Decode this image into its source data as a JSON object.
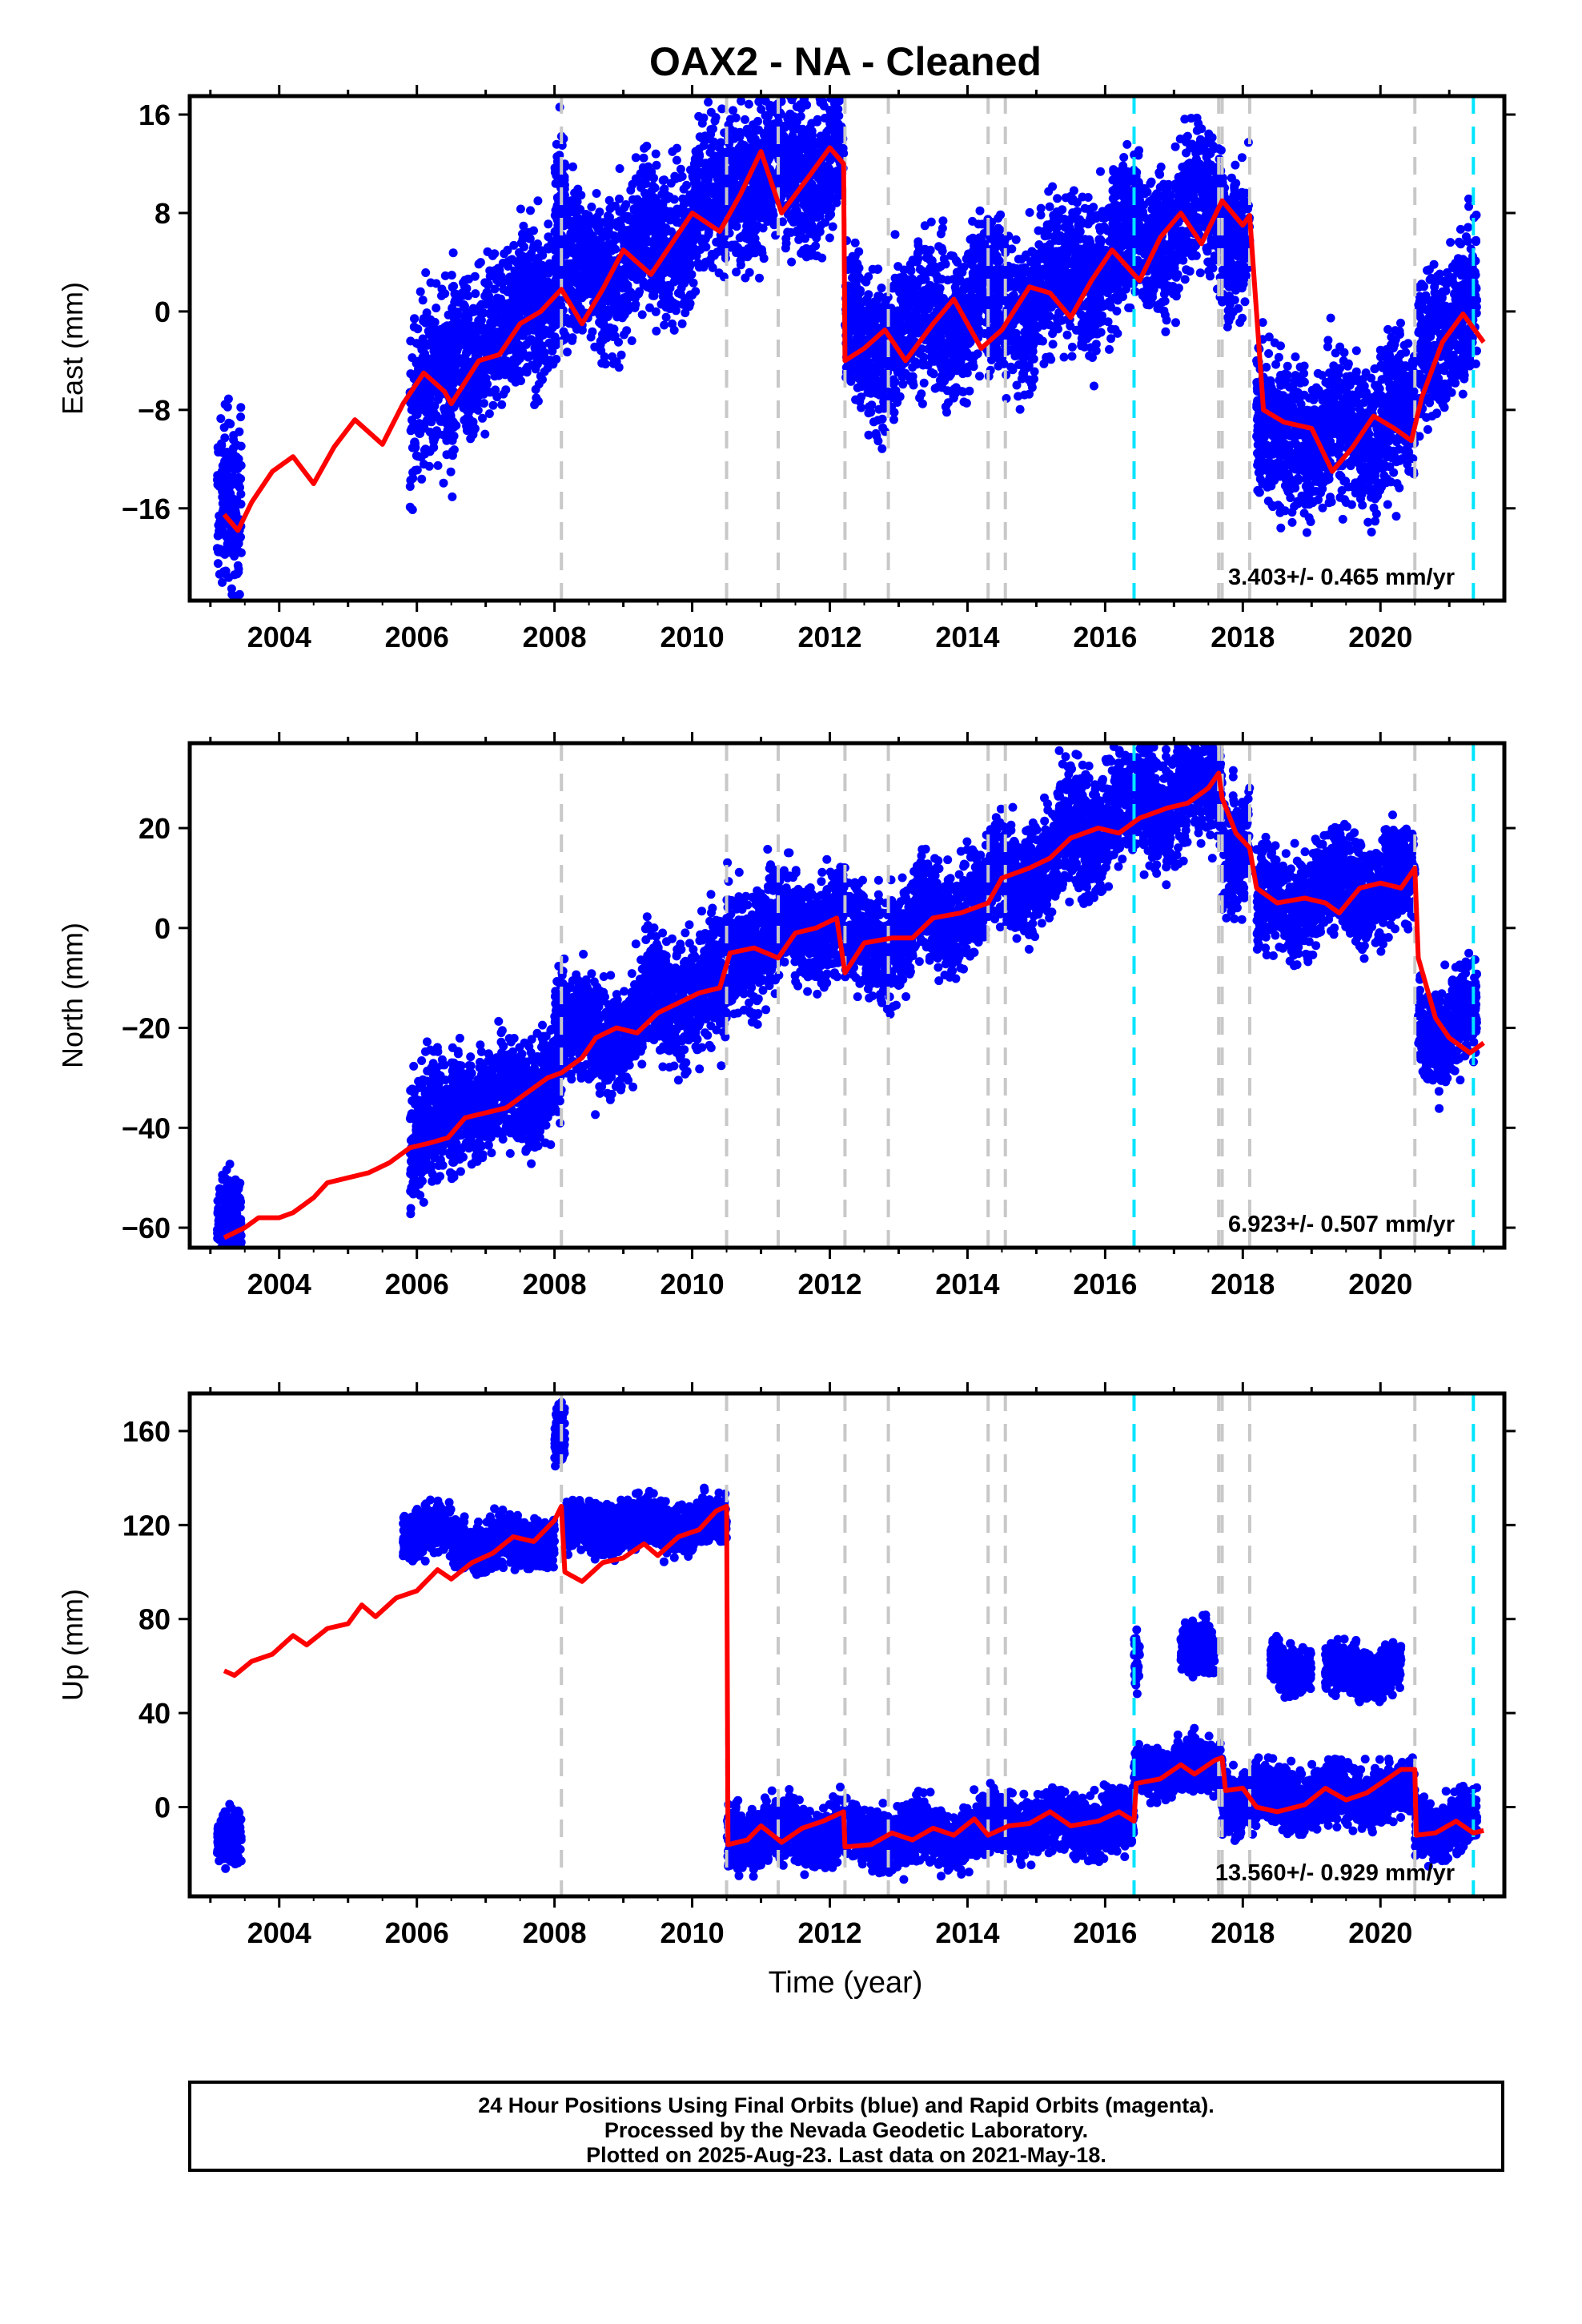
{
  "title": "OAX2  - NA - Cleaned",
  "xlabel": "Time (year)",
  "footer": {
    "line1": "24 Hour Positions Using Final Orbits (blue) and Rapid Orbits (magenta).",
    "line2": "Processed by the Nevada Geodetic Laboratory.",
    "line3": "Plotted on 2025-Aug-23. Last data on 2021-May-18."
  },
  "colors": {
    "data": "#0000ff",
    "model": "#ff0000",
    "equipment_line": "#c8c8c8",
    "earthquake_line": "#00e5ff",
    "axis": "#000000"
  },
  "chart_data": [
    {
      "type": "scatter",
      "component": "East",
      "ylabel": "East (mm)",
      "rate_label": "3.403+/- 0.465 mm/yr",
      "xlim": [
        2002.7,
        2021.8
      ],
      "ylim": [
        -23.5,
        17.5
      ],
      "xticks": [
        2004,
        2006,
        2008,
        2010,
        2012,
        2014,
        2016,
        2018,
        2020
      ],
      "yticks": [
        -16,
        -8,
        0,
        8,
        16
      ],
      "gray_lines": [
        2008.1,
        2010.5,
        2011.25,
        2012.22,
        2012.85,
        2014.3,
        2014.55,
        2017.65,
        2017.7,
        2018.1,
        2020.5
      ],
      "cyan_lines": [
        2016.42,
        2021.35
      ],
      "model": [
        [
          2003.2,
          -16.5
        ],
        [
          2003.4,
          -17.8
        ],
        [
          2003.6,
          -15.5
        ],
        [
          2003.9,
          -13
        ],
        [
          2004.2,
          -11.8
        ],
        [
          2004.5,
          -14
        ],
        [
          2004.8,
          -11
        ],
        [
          2005.1,
          -8.8
        ],
        [
          2005.5,
          -10.8
        ],
        [
          2005.8,
          -7.5
        ],
        [
          2006.1,
          -5
        ],
        [
          2006.4,
          -6.5
        ],
        [
          2006.5,
          -7.5
        ],
        [
          2006.9,
          -4
        ],
        [
          2007.2,
          -3.5
        ],
        [
          2007.5,
          -1
        ],
        [
          2007.8,
          0
        ],
        [
          2008.1,
          1.8
        ],
        [
          2008.4,
          -1
        ],
        [
          2008.7,
          1.8
        ],
        [
          2009.0,
          5
        ],
        [
          2009.4,
          3
        ],
        [
          2009.7,
          5.5
        ],
        [
          2010.0,
          8
        ],
        [
          2010.4,
          6.5
        ],
        [
          2010.7,
          9.5
        ],
        [
          2011.0,
          13
        ],
        [
          2011.3,
          8
        ],
        [
          2011.7,
          11
        ],
        [
          2012.0,
          13.3
        ],
        [
          2012.2,
          12
        ],
        [
          2012.22,
          -4
        ],
        [
          2012.5,
          -3
        ],
        [
          2012.8,
          -1.5
        ],
        [
          2013.1,
          -4
        ],
        [
          2013.5,
          -1
        ],
        [
          2013.8,
          1
        ],
        [
          2014.2,
          -3
        ],
        [
          2014.5,
          -1.5
        ],
        [
          2014.9,
          2
        ],
        [
          2015.2,
          1.5
        ],
        [
          2015.5,
          -0.5
        ],
        [
          2015.8,
          2.5
        ],
        [
          2016.1,
          5
        ],
        [
          2016.5,
          2.5
        ],
        [
          2016.8,
          6
        ],
        [
          2017.1,
          8
        ],
        [
          2017.4,
          5.5
        ],
        [
          2017.7,
          9
        ],
        [
          2018.0,
          7
        ],
        [
          2018.1,
          7.8
        ],
        [
          2018.3,
          -8
        ],
        [
          2018.6,
          -9
        ],
        [
          2019.0,
          -9.5
        ],
        [
          2019.3,
          -13
        ],
        [
          2019.6,
          -11
        ],
        [
          2019.9,
          -8.5
        ],
        [
          2020.2,
          -9.5
        ],
        [
          2020.45,
          -10.5
        ],
        [
          2020.6,
          -7
        ],
        [
          2020.9,
          -2.5
        ],
        [
          2021.2,
          -0.2
        ],
        [
          2021.5,
          -2.5
        ]
      ],
      "clusters": [
        [
          2003.1,
          2003.45,
          -17,
          3.5,
          0
        ],
        [
          2005.9,
          2006.55,
          -7,
          3.5,
          0.6
        ],
        [
          2006.5,
          2007.5,
          -3,
          3,
          1.5
        ],
        [
          2007.5,
          2008.4,
          1,
          3,
          2.5
        ],
        [
          2008.0,
          2008.15,
          8,
          3,
          0
        ],
        [
          2008.4,
          2009.2,
          3,
          3,
          2
        ],
        [
          2009.2,
          2010.0,
          5,
          3,
          2
        ],
        [
          2010.0,
          2010.5,
          8,
          3,
          1
        ],
        [
          2010.5,
          2011.3,
          10.5,
          3,
          2
        ],
        [
          2011.3,
          2012.2,
          11,
          3,
          2
        ],
        [
          2012.22,
          2013.2,
          -3,
          3,
          1.5
        ],
        [
          2013.2,
          2014.3,
          -1.5,
          3,
          2.5
        ],
        [
          2014.3,
          2015.5,
          0,
          3,
          2
        ],
        [
          2015.5,
          2016.45,
          3,
          3,
          3
        ],
        [
          2016.45,
          2017.7,
          6,
          3,
          2.5
        ],
        [
          2017.7,
          2018.1,
          6.5,
          3,
          1
        ],
        [
          2018.2,
          2018.9,
          -10.5,
          3,
          2
        ],
        [
          2018.9,
          2019.8,
          -11,
          3,
          2.5
        ],
        [
          2019.8,
          2020.5,
          -9.5,
          3,
          1.5
        ],
        [
          2020.55,
          2021.4,
          -2,
          3,
          2
        ]
      ]
    },
    {
      "type": "scatter",
      "component": "North",
      "ylabel": "North (mm)",
      "rate_label": "6.923+/- 0.507 mm/yr",
      "xlim": [
        2002.7,
        2021.8
      ],
      "ylim": [
        -64,
        37
      ],
      "xticks": [
        2004,
        2006,
        2008,
        2010,
        2012,
        2014,
        2016,
        2018,
        2020
      ],
      "yticks": [
        -60,
        -40,
        -20,
        0,
        20
      ],
      "gray_lines": [
        2008.1,
        2010.5,
        2011.25,
        2012.22,
        2012.85,
        2014.3,
        2014.55,
        2017.65,
        2017.7,
        2018.1,
        2020.5
      ],
      "cyan_lines": [
        2016.42,
        2021.35
      ],
      "model": [
        [
          2003.2,
          -62
        ],
        [
          2003.5,
          -60
        ],
        [
          2003.7,
          -58
        ],
        [
          2004.0,
          -58
        ],
        [
          2004.2,
          -57
        ],
        [
          2004.5,
          -54
        ],
        [
          2004.7,
          -51
        ],
        [
          2005.0,
          -50
        ],
        [
          2005.3,
          -49
        ],
        [
          2005.6,
          -47
        ],
        [
          2005.9,
          -44
        ],
        [
          2006.2,
          -43
        ],
        [
          2006.45,
          -42
        ],
        [
          2006.7,
          -38
        ],
        [
          2007.0,
          -37
        ],
        [
          2007.3,
          -36
        ],
        [
          2007.6,
          -33
        ],
        [
          2007.9,
          -30
        ],
        [
          2008.1,
          -29
        ],
        [
          2008.4,
          -26
        ],
        [
          2008.6,
          -22
        ],
        [
          2008.9,
          -20
        ],
        [
          2009.2,
          -21
        ],
        [
          2009.5,
          -17
        ],
        [
          2009.8,
          -15
        ],
        [
          2010.1,
          -13
        ],
        [
          2010.4,
          -12
        ],
        [
          2010.55,
          -5
        ],
        [
          2010.9,
          -4
        ],
        [
          2011.25,
          -6
        ],
        [
          2011.5,
          -1
        ],
        [
          2011.8,
          0
        ],
        [
          2012.1,
          2
        ],
        [
          2012.22,
          -9
        ],
        [
          2012.5,
          -3
        ],
        [
          2012.9,
          -2
        ],
        [
          2013.2,
          -2
        ],
        [
          2013.5,
          2
        ],
        [
          2013.9,
          3
        ],
        [
          2014.3,
          5
        ],
        [
          2014.5,
          10
        ],
        [
          2014.9,
          12
        ],
        [
          2015.2,
          14
        ],
        [
          2015.5,
          18
        ],
        [
          2015.9,
          20
        ],
        [
          2016.2,
          19
        ],
        [
          2016.5,
          22
        ],
        [
          2016.9,
          24
        ],
        [
          2017.2,
          25
        ],
        [
          2017.5,
          28
        ],
        [
          2017.65,
          31
        ],
        [
          2017.7,
          26
        ],
        [
          2017.9,
          19
        ],
        [
          2018.1,
          16
        ],
        [
          2018.2,
          8
        ],
        [
          2018.5,
          5
        ],
        [
          2018.9,
          6
        ],
        [
          2019.2,
          5
        ],
        [
          2019.4,
          3
        ],
        [
          2019.7,
          8
        ],
        [
          2020.0,
          9
        ],
        [
          2020.3,
          8
        ],
        [
          2020.5,
          12
        ],
        [
          2020.55,
          -6
        ],
        [
          2020.8,
          -18
        ],
        [
          2021.0,
          -22
        ],
        [
          2021.3,
          -25
        ],
        [
          2021.5,
          -23
        ]
      ],
      "clusters": [
        [
          2003.1,
          2003.45,
          -59,
          4,
          0
        ],
        [
          2005.9,
          2006.55,
          -41,
          6,
          0.4
        ],
        [
          2006.5,
          2007.8,
          -35,
          5,
          1.5
        ],
        [
          2007.8,
          2008.1,
          -28,
          5,
          1
        ],
        [
          2008.0,
          2008.15,
          -18,
          5,
          0
        ],
        [
          2008.1,
          2009.3,
          -22,
          5,
          2
        ],
        [
          2009.3,
          2010.5,
          -14,
          6,
          2
        ],
        [
          2010.5,
          2011.25,
          -3,
          6,
          1.5
        ],
        [
          2011.25,
          2012.22,
          0,
          5,
          2
        ],
        [
          2012.22,
          2013.2,
          -3,
          5,
          1
        ],
        [
          2013.2,
          2014.3,
          2,
          5,
          2.5
        ],
        [
          2014.3,
          2015.3,
          10,
          5,
          2
        ],
        [
          2015.3,
          2016.45,
          20,
          6,
          2
        ],
        [
          2016.45,
          2017.7,
          25,
          6,
          3
        ],
        [
          2017.7,
          2018.1,
          17,
          6,
          2
        ],
        [
          2018.2,
          2019.3,
          5,
          5,
          1.5
        ],
        [
          2019.3,
          2020.5,
          8,
          5,
          1.5
        ],
        [
          2020.55,
          2021.4,
          -20,
          5,
          2
        ]
      ]
    },
    {
      "type": "scatter",
      "component": "Up",
      "ylabel": "Up (mm)",
      "rate_label": "13.560+/- 0.929 mm/yr",
      "xlim": [
        2002.7,
        2021.8
      ],
      "ylim": [
        -38,
        176
      ],
      "xticks": [
        2004,
        2006,
        2008,
        2010,
        2012,
        2014,
        2016,
        2018,
        2020
      ],
      "yticks": [
        0,
        40,
        80,
        120,
        160
      ],
      "gray_lines": [
        2008.1,
        2010.5,
        2011.25,
        2012.22,
        2012.85,
        2014.3,
        2014.55,
        2017.65,
        2017.7,
        2018.1,
        2020.5
      ],
      "cyan_lines": [
        2016.42,
        2021.35
      ],
      "model": [
        [
          2003.2,
          58
        ],
        [
          2003.35,
          56
        ],
        [
          2003.6,
          62
        ],
        [
          2003.9,
          65
        ],
        [
          2004.2,
          73
        ],
        [
          2004.4,
          69
        ],
        [
          2004.7,
          76
        ],
        [
          2005.0,
          78
        ],
        [
          2005.2,
          86
        ],
        [
          2005.4,
          81
        ],
        [
          2005.7,
          89
        ],
        [
          2006.0,
          92
        ],
        [
          2006.3,
          101
        ],
        [
          2006.5,
          97
        ],
        [
          2006.8,
          104
        ],
        [
          2007.1,
          108
        ],
        [
          2007.4,
          115
        ],
        [
          2007.7,
          113
        ],
        [
          2008.0,
          122
        ],
        [
          2008.1,
          128
        ],
        [
          2008.15,
          100
        ],
        [
          2008.4,
          96
        ],
        [
          2008.7,
          104
        ],
        [
          2009.0,
          106
        ],
        [
          2009.3,
          112
        ],
        [
          2009.5,
          107
        ],
        [
          2009.8,
          115
        ],
        [
          2010.1,
          118
        ],
        [
          2010.35,
          126
        ],
        [
          2010.5,
          128
        ],
        [
          2010.52,
          -16
        ],
        [
          2010.8,
          -14
        ],
        [
          2011.0,
          -8
        ],
        [
          2011.3,
          -15
        ],
        [
          2011.6,
          -9
        ],
        [
          2011.9,
          -6
        ],
        [
          2012.2,
          -2
        ],
        [
          2012.22,
          -17
        ],
        [
          2012.6,
          -16
        ],
        [
          2012.9,
          -11
        ],
        [
          2013.2,
          -14
        ],
        [
          2013.5,
          -9
        ],
        [
          2013.8,
          -12
        ],
        [
          2014.1,
          -5
        ],
        [
          2014.3,
          -12
        ],
        [
          2014.6,
          -8
        ],
        [
          2014.9,
          -7
        ],
        [
          2015.2,
          -2
        ],
        [
          2015.5,
          -8
        ],
        [
          2015.9,
          -6
        ],
        [
          2016.2,
          -2
        ],
        [
          2016.42,
          -6
        ],
        [
          2016.45,
          10
        ],
        [
          2016.8,
          12
        ],
        [
          2017.1,
          18
        ],
        [
          2017.3,
          14
        ],
        [
          2017.6,
          20
        ],
        [
          2017.7,
          21
        ],
        [
          2017.75,
          7
        ],
        [
          2018.0,
          8
        ],
        [
          2018.2,
          0
        ],
        [
          2018.5,
          -2
        ],
        [
          2018.9,
          1
        ],
        [
          2019.2,
          8
        ],
        [
          2019.5,
          3
        ],
        [
          2019.8,
          6
        ],
        [
          2020.1,
          12
        ],
        [
          2020.3,
          16
        ],
        [
          2020.5,
          16
        ],
        [
          2020.52,
          -12
        ],
        [
          2020.8,
          -11
        ],
        [
          2021.1,
          -6
        ],
        [
          2021.35,
          -11
        ],
        [
          2021.5,
          -10
        ]
      ],
      "clusters": [
        [
          2003.1,
          2003.45,
          -14,
          6,
          0
        ],
        [
          2005.8,
          2006.5,
          117,
          5,
          0.3
        ],
        [
          2006.5,
          2008.0,
          112,
          5,
          0.8
        ],
        [
          2008.0,
          2008.15,
          158,
          7,
          0
        ],
        [
          2008.15,
          2010.5,
          119,
          5,
          0.7
        ],
        [
          2010.5,
          2012.22,
          -12,
          6,
          1
        ],
        [
          2012.22,
          2014.3,
          -13,
          6,
          1
        ],
        [
          2014.3,
          2016.42,
          -8,
          6,
          1
        ],
        [
          2016.42,
          2017.7,
          16,
          5,
          1
        ],
        [
          2016.42,
          2016.5,
          62,
          7,
          0
        ],
        [
          2017.1,
          2017.6,
          66,
          5,
          0
        ],
        [
          2017.7,
          2020.5,
          3,
          6,
          1
        ],
        [
          2018.4,
          2019.0,
          60,
          5,
          0
        ],
        [
          2019.2,
          2020.3,
          58,
          5,
          0
        ],
        [
          2020.5,
          2021.4,
          -8,
          6,
          1
        ]
      ]
    }
  ]
}
